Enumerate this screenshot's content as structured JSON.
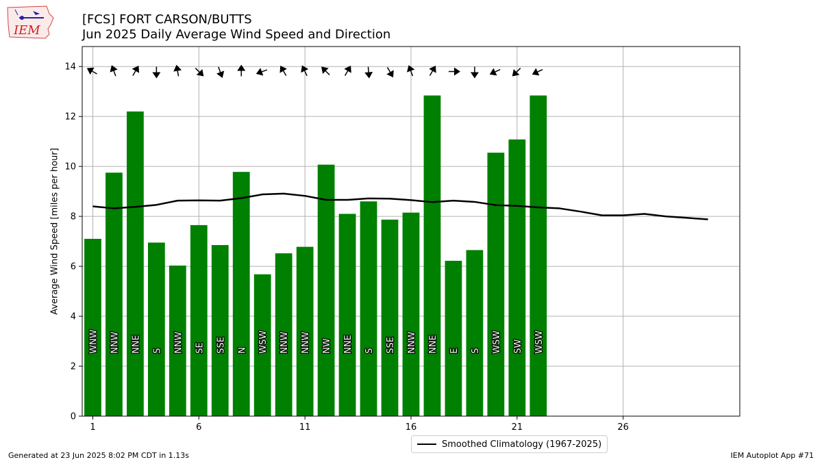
{
  "header": {
    "title_line1": "[FCS] FORT CARSON/BUTTS",
    "title_line2": "Jun 2025 Daily Average Wind Speed and Direction",
    "logo_text": "IEM"
  },
  "footer": {
    "generated": "Generated at 23 Jun 2025 8:02 PM CDT in 1.13s",
    "app": "IEM Autoplot App #71"
  },
  "colors": {
    "bar": "#008000",
    "climatology_line": "#000000",
    "grid": "#b0b0b0"
  },
  "chart_data": {
    "type": "bar",
    "title": "[FCS] FORT CARSON/BUTTS",
    "subtitle": "Jun 2025 Daily Average Wind Speed and Direction",
    "xlabel": "",
    "ylabel": "Average Wind Speed [miles per hour]",
    "xlim": [
      0.5,
      31.5
    ],
    "ylim": [
      0,
      14.8
    ],
    "x_ticks": [
      1,
      6,
      11,
      16,
      21,
      26
    ],
    "y_ticks": [
      0,
      2,
      4,
      6,
      8,
      10,
      12,
      14
    ],
    "grid": true,
    "legend_placement": "bottom-center",
    "days": [
      1,
      2,
      3,
      4,
      5,
      6,
      7,
      8,
      9,
      10,
      11,
      12,
      13,
      14,
      15,
      16,
      17,
      18,
      19,
      20,
      21,
      22
    ],
    "speeds": [
      7.1,
      9.75,
      12.2,
      6.95,
      6.03,
      7.65,
      6.85,
      9.78,
      5.68,
      6.52,
      6.78,
      10.07,
      8.1,
      8.6,
      7.87,
      8.15,
      12.84,
      6.22,
      6.65,
      10.55,
      11.08,
      12.84
    ],
    "directions": [
      "WNW",
      "NNW",
      "NNE",
      "S",
      "NNW",
      "SE",
      "SSE",
      "N",
      "WSW",
      "NNW",
      "NNW",
      "NW",
      "NNE",
      "S",
      "SSE",
      "NNW",
      "NNE",
      "E",
      "S",
      "WSW",
      "SW",
      "WSW"
    ],
    "arrow_angles_deg": [
      300,
      340,
      30,
      180,
      350,
      135,
      160,
      0,
      250,
      330,
      335,
      315,
      30,
      175,
      150,
      340,
      30,
      90,
      180,
      245,
      225,
      245
    ],
    "series": [
      {
        "name": "Smoothed Climatology (1967-2025)",
        "type": "line",
        "x": [
          1,
          2,
          3,
          4,
          5,
          6,
          7,
          8,
          9,
          10,
          11,
          12,
          13,
          14,
          15,
          16,
          17,
          18,
          19,
          20,
          21,
          22,
          23,
          24,
          25,
          26,
          27,
          28,
          29,
          30
        ],
        "values": [
          8.4,
          8.32,
          8.38,
          8.46,
          8.63,
          8.64,
          8.63,
          8.73,
          8.88,
          8.91,
          8.82,
          8.66,
          8.66,
          8.72,
          8.71,
          8.65,
          8.57,
          8.63,
          8.58,
          8.45,
          8.42,
          8.36,
          8.32,
          8.19,
          8.04,
          8.04,
          8.1,
          8.0,
          7.94,
          7.88
        ]
      }
    ]
  }
}
